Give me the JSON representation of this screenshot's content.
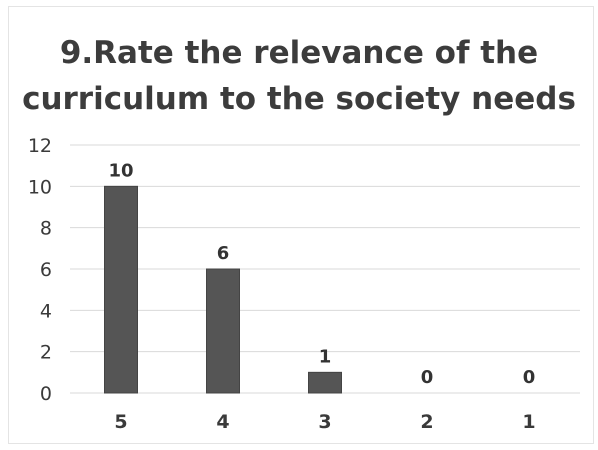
{
  "chart_data": {
    "type": "bar",
    "title": "9.Rate the relevance of the curriculum to the society needs",
    "categories": [
      "5",
      "4",
      "3",
      "2",
      "1"
    ],
    "values": [
      10,
      6,
      1,
      0,
      0
    ],
    "data_labels": [
      "10",
      "6",
      "1",
      "0",
      "0"
    ],
    "ylim": [
      0,
      12
    ],
    "yticks": [
      0,
      2,
      4,
      6,
      8,
      10,
      12
    ],
    "grid": true,
    "legend": "none",
    "xlabel": "",
    "ylabel": "",
    "bar_color": "#555555",
    "grid_color": "#d9d9d9"
  }
}
